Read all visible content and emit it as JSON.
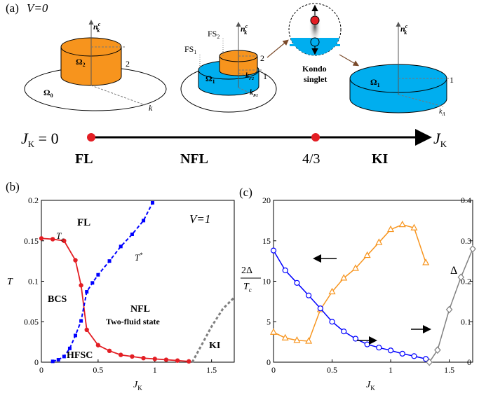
{
  "panel_a": {
    "label": "(a)",
    "v_label": "V=0",
    "axis_n": "n",
    "axis_n_sup": "c",
    "axis_n_sub": "k",
    "axis_k": "k",
    "omega0": "Ω",
    "omega0_sub": "0",
    "omega2": "Ω",
    "omega2_sub": "2",
    "omega1": "Ω",
    "omega1_sub": "1",
    "tick_2": "2",
    "tick_1": "1",
    "fs1": "FS",
    "fs1_sub": "1",
    "fs2": "FS",
    "fs2_sub": "2",
    "kf2": "k",
    "kf2_sub": "F2",
    "kf1": "k",
    "kf1_sub": "F1",
    "k_lambda": "k",
    "k_lambda_sub": "Λ",
    "kondo_line1": "Kondo",
    "kondo_line2": "singlet",
    "jk_zero": "J",
    "jk_zero_sub": "K",
    "jk_zero_eq": " = 0",
    "jk_end": "J",
    "jk_end_sub": "K",
    "phase_fl": "FL",
    "phase_nfl": "NFL",
    "crit_value": "4/3",
    "phase_ki": "KI",
    "orange": "#F7941D",
    "blue": "#00AEEF",
    "red": "#E31E24"
  },
  "chart_data": [
    {
      "type": "line",
      "label": "(b)",
      "annotation": "V=1",
      "ylabel": "T",
      "xlabel": "J",
      "xlabel_sub": "K",
      "xlim": [
        0,
        1.7
      ],
      "ylim": [
        0,
        0.2
      ],
      "xticks": [
        "0",
        "0.5",
        "1",
        "1.5"
      ],
      "yticks": [
        "0",
        "0.05",
        "0.1",
        "0.15",
        "0.2"
      ],
      "regions": [
        "FL",
        "BCS",
        "NFL",
        "Two-fluid state",
        "HFSC",
        "KI"
      ],
      "tc_label": "T",
      "tc_label_sub": "c",
      "tstar_label": "T",
      "tstar_label_sup": "*",
      "series": [
        {
          "name": "Tc",
          "color": "#E31E24",
          "x": [
            0,
            0.1,
            0.2,
            0.3,
            0.35,
            0.4,
            0.5,
            0.6,
            0.7,
            0.8,
            0.9,
            1.0,
            1.1,
            1.2,
            1.3
          ],
          "y": [
            0.153,
            0.152,
            0.15,
            0.126,
            0.095,
            0.04,
            0.021,
            0.014,
            0.009,
            0.007,
            0.005,
            0.004,
            0.003,
            0.002,
            0.001
          ]
        },
        {
          "name": "T*",
          "color": "#0000FF",
          "x": [
            0.1,
            0.15,
            0.2,
            0.25,
            0.3,
            0.35,
            0.4,
            0.45,
            0.5,
            0.6,
            0.7,
            0.8,
            0.9,
            0.98
          ],
          "y": [
            0.001,
            0.003,
            0.007,
            0.017,
            0.033,
            0.051,
            0.087,
            0.098,
            0.108,
            0.125,
            0.143,
            0.158,
            0.175,
            0.197
          ]
        },
        {
          "name": "KI boundary",
          "color": "#808080",
          "x": [
            1.33,
            1.4,
            1.5,
            1.6,
            1.7
          ],
          "y": [
            0,
            0.018,
            0.044,
            0.066,
            0.08
          ]
        }
      ]
    },
    {
      "type": "line",
      "label": "(c)",
      "xlabel": "J",
      "xlabel_sub": "K",
      "ylabel_left_num": "2Δ",
      "ylabel_left_den": "T",
      "ylabel_left_den_sub": "c",
      "ylabel_right": "Δ",
      "xlim": [
        0,
        1.7
      ],
      "ylim_left": [
        0,
        20
      ],
      "ylim_right": [
        0,
        0.4
      ],
      "xticks": [
        "0",
        "0.5",
        "1",
        "1.5"
      ],
      "yticks_left": [
        "0",
        "5",
        "10",
        "15",
        "20"
      ],
      "yticks_right": [
        "0",
        "0.1",
        "0.2",
        "0.3",
        "0.4"
      ],
      "series": [
        {
          "name": "2Δ/Tc",
          "axis": "left",
          "color": "#F7941D",
          "marker": "triangle",
          "x": [
            0,
            0.1,
            0.2,
            0.3,
            0.4,
            0.5,
            0.6,
            0.7,
            0.8,
            0.9,
            1.0,
            1.1,
            1.2,
            1.3
          ],
          "y": [
            3.7,
            3.0,
            2.7,
            2.6,
            6.5,
            8.7,
            10.4,
            11.6,
            13.2,
            14.8,
            16.4,
            17.0,
            16.6,
            12.3
          ]
        },
        {
          "name": "Δ (blue)",
          "axis": "right",
          "color": "#0000FF",
          "marker": "circle",
          "x": [
            0,
            0.1,
            0.2,
            0.3,
            0.4,
            0.5,
            0.6,
            0.7,
            0.8,
            0.9,
            1.0,
            1.1,
            1.2,
            1.3
          ],
          "y": [
            0.276,
            0.227,
            0.196,
            0.165,
            0.133,
            0.1,
            0.076,
            0.058,
            0.044,
            0.036,
            0.029,
            0.021,
            0.015,
            0.008
          ]
        },
        {
          "name": "Δ (gray)",
          "axis": "right",
          "color": "#808080",
          "marker": "diamond",
          "x": [
            1.33,
            1.4,
            1.5,
            1.6,
            1.7
          ],
          "y": [
            0,
            0.03,
            0.13,
            0.21,
            0.28
          ]
        }
      ]
    }
  ]
}
